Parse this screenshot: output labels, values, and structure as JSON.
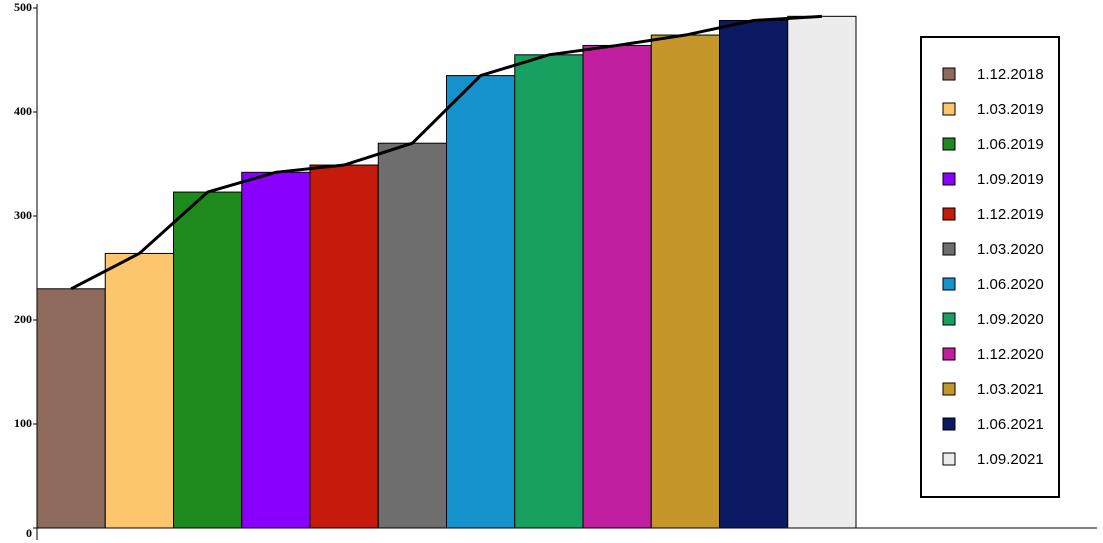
{
  "chart_data": {
    "type": "bar",
    "categories": [
      "1.12.2018",
      "1.03.2019",
      "1.06.2019",
      "1.09.2019",
      "1.12.2019",
      "1.03.2020",
      "1.06.2020",
      "1.09.2020",
      "1.12.2020",
      "1.03.2021",
      "1.06.2021",
      "1.09.2021"
    ],
    "values": [
      230,
      264,
      323,
      342,
      349,
      370,
      435,
      455,
      464,
      474,
      488,
      492
    ],
    "colors": [
      "#8e6a5c",
      "#fdc56c",
      "#1e8a1e",
      "#8a00ff",
      "#c51a0c",
      "#6e6e6e",
      "#1592cc",
      "#17a060",
      "#c020a0",
      "#c5962a",
      "#0c1a64",
      "#ececec"
    ],
    "line": true,
    "line_color": "#000000",
    "ylim": [
      0,
      500
    ],
    "yticks": [
      0,
      100,
      200,
      300,
      400,
      500
    ],
    "legend": "right"
  }
}
